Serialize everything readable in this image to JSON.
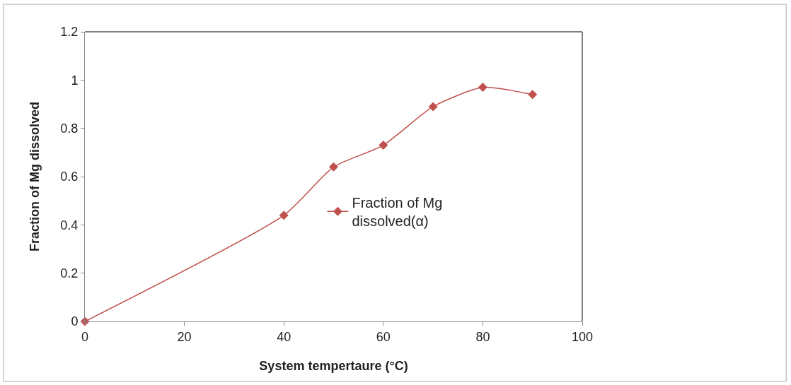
{
  "chart_data": {
    "type": "line",
    "xlabel": "System tempertaure (°C)",
    "ylabel": "Fraction of Mg dissolved",
    "x": [
      0,
      40,
      50,
      60,
      70,
      80,
      90
    ],
    "series": [
      {
        "name": "Fraction of Mg dissolved(α)",
        "color": "#c0504d",
        "values": [
          0,
          0.44,
          0.64,
          0.73,
          0.89,
          0.97,
          0.94
        ]
      }
    ],
    "xlim": [
      0,
      100
    ],
    "xticks": [
      0,
      20,
      40,
      60,
      80,
      100
    ],
    "ylim": [
      0,
      1.2
    ],
    "yticks": [
      0,
      0.2,
      0.4,
      0.6,
      0.8,
      1,
      1.2
    ],
    "legend": "right",
    "marker": "diamond",
    "line_style": "solid"
  }
}
